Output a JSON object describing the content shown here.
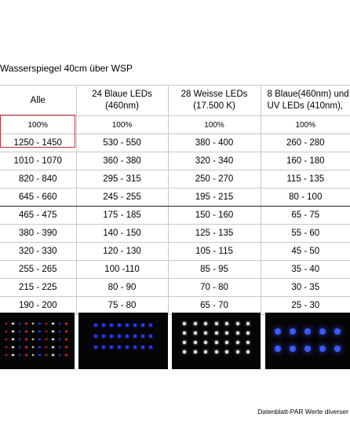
{
  "caption": "Wasserspiegel 40cm über WSP",
  "columns": [
    "Alle",
    "24 Blaue LEDs\n(460nm)",
    "28 Weisse LEDs\n(17.500 K)",
    "8 Blaue(460nm) und\nUV LEDs (410nm),"
  ],
  "percent_row": [
    "100%",
    "100%",
    "100%",
    "100%"
  ],
  "rows": [
    [
      "1250 - 1450",
      "530 - 550",
      "380 - 400",
      "260 - 280"
    ],
    [
      "1010 - 1070",
      "360 - 380",
      "320 - 340",
      "160 - 180"
    ],
    [
      "820 - 840",
      "295 - 315",
      "250 - 270",
      "115 - 135"
    ],
    [
      "645 - 660",
      "245 - 255",
      "195 - 215",
      "80 - 100"
    ],
    [
      "465 - 475",
      "175 - 185",
      "150 - 160",
      "65 - 75"
    ],
    [
      "380 - 390",
      "140 - 150",
      "125 - 135",
      "55 - 60"
    ],
    [
      "320 - 330",
      "120 - 130",
      "105 - 115",
      "45 - 50"
    ],
    [
      "255 - 265",
      "100 -110",
      "85 - 95",
      "35 - 40"
    ],
    [
      "215 - 225",
      "80 - 90",
      "70 - 80",
      "30 - 35"
    ],
    [
      "190 - 200",
      "75 - 80",
      "65 - 70",
      "25 - 30"
    ]
  ],
  "footer": "Datenblatt-PAR Werte diverser",
  "photo_colors": {
    "background": "#050505",
    "blue": "#2a3cff",
    "white": "#f2f2f2",
    "red": "#e03020",
    "blue_glow": "#3a5aff"
  }
}
